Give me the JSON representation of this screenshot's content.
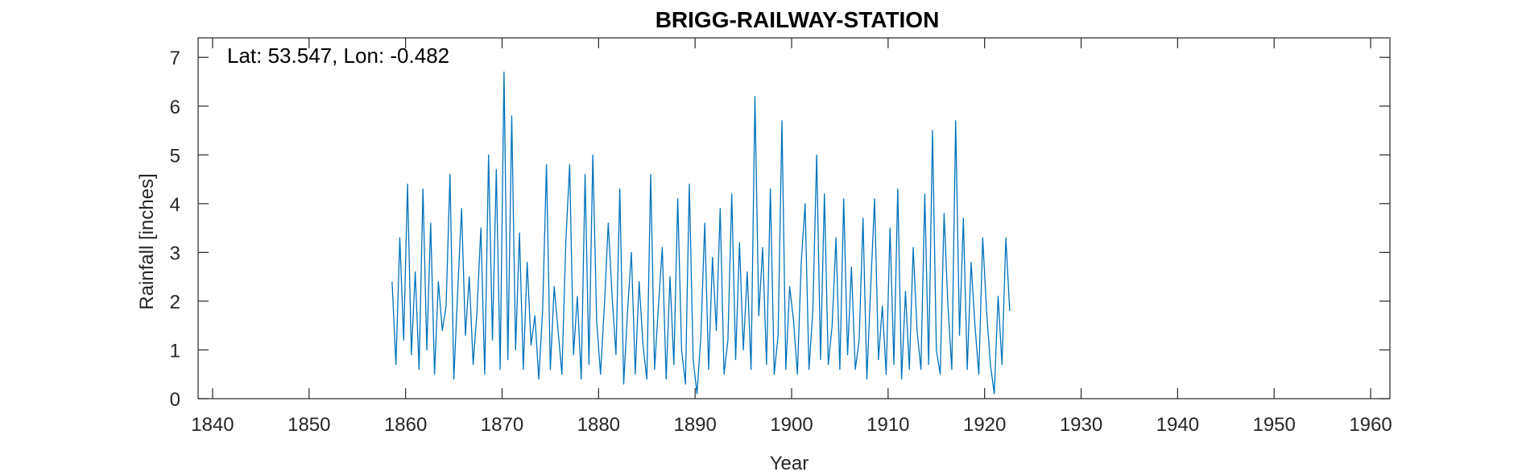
{
  "chart_data": {
    "type": "line",
    "title": "BRIGG-RAILWAY-STATION",
    "xlabel": "Year",
    "ylabel": "Rainfall [inches]",
    "annotation": "Lat: 53.547, Lon: -0.482",
    "xlim": [
      1838.5,
      1962
    ],
    "ylim": [
      0,
      7.4
    ],
    "xticks": [
      1840,
      1850,
      1860,
      1870,
      1880,
      1890,
      1900,
      1910,
      1920,
      1930,
      1940,
      1950,
      1960
    ],
    "yticks": [
      0,
      1,
      2,
      3,
      4,
      5,
      6,
      7
    ],
    "grid": false,
    "line_color": "#0072BD",
    "series": [
      {
        "x": [
          1858.6,
          1859.0,
          1859.4,
          1859.8,
          1860.2,
          1860.6,
          1861.0,
          1861.4,
          1861.8,
          1862.2,
          1862.6,
          1863.0,
          1863.4,
          1863.8,
          1864.2,
          1864.6,
          1865.0,
          1865.4,
          1865.8,
          1866.2,
          1866.6,
          1867.0,
          1867.4,
          1867.8,
          1868.2,
          1868.6,
          1869.0,
          1869.4,
          1869.8,
          1870.2,
          1870.6,
          1871.0,
          1871.4,
          1871.8,
          1872.2,
          1872.6,
          1873.0,
          1873.4,
          1873.8,
          1874.2,
          1874.6,
          1875.0,
          1875.4,
          1875.8,
          1876.2,
          1876.6,
          1877.0,
          1877.4,
          1877.8,
          1878.2,
          1878.6,
          1879.0,
          1879.4,
          1879.8,
          1880.2,
          1880.6,
          1881.0,
          1881.4,
          1881.8,
          1882.2,
          1882.6,
          1883.0,
          1883.4,
          1883.8,
          1884.2,
          1884.6,
          1885.0,
          1885.4,
          1885.8,
          1886.2,
          1886.6,
          1887.0,
          1887.4,
          1887.8,
          1888.2,
          1888.6,
          1889.0,
          1889.4,
          1889.8,
          1890.2,
          1890.6,
          1891.0,
          1891.4,
          1891.8,
          1892.2,
          1892.6,
          1893.0,
          1893.4,
          1893.8,
          1894.2,
          1894.6,
          1895.0,
          1895.4,
          1895.8,
          1896.2,
          1896.6,
          1897.0,
          1897.4,
          1897.8,
          1898.2,
          1898.6,
          1899.0,
          1899.4,
          1899.8,
          1900.2,
          1900.6,
          1901.0,
          1901.4,
          1901.8,
          1902.2,
          1902.6,
          1903.0,
          1903.4,
          1903.8,
          1904.2,
          1904.6,
          1905.0,
          1905.4,
          1905.8,
          1906.2,
          1906.6,
          1907.0,
          1907.4,
          1907.8,
          1908.2,
          1908.6,
          1909.0,
          1909.4,
          1909.8,
          1910.2,
          1910.6,
          1911.0,
          1911.4,
          1911.8,
          1912.2,
          1912.6,
          1913.0,
          1913.4,
          1913.8,
          1914.2,
          1914.6,
          1915.0,
          1915.4,
          1915.8,
          1916.2,
          1916.6,
          1917.0,
          1917.4,
          1917.8,
          1918.2,
          1918.6,
          1919.0,
          1919.4,
          1919.8,
          1920.2,
          1920.6,
          1921.0,
          1921.4,
          1921.8,
          1922.2,
          1922.6
        ],
        "y": [
          2.4,
          0.7,
          3.3,
          1.2,
          4.4,
          0.9,
          2.6,
          0.6,
          4.3,
          1.0,
          3.6,
          0.5,
          2.4,
          1.4,
          1.9,
          4.6,
          0.4,
          2.2,
          3.9,
          1.3,
          2.5,
          0.7,
          1.8,
          3.5,
          0.5,
          5.0,
          1.2,
          4.7,
          0.6,
          6.7,
          0.8,
          5.8,
          1.0,
          3.4,
          0.6,
          2.8,
          1.1,
          1.7,
          0.4,
          1.8,
          4.8,
          0.6,
          2.3,
          1.4,
          0.5,
          3.2,
          4.8,
          0.9,
          2.1,
          0.4,
          4.6,
          0.7,
          5.0,
          1.6,
          0.5,
          1.9,
          3.6,
          2.1,
          0.9,
          4.3,
          0.3,
          1.8,
          3.0,
          0.5,
          2.4,
          1.1,
          0.4,
          4.6,
          0.6,
          1.9,
          3.1,
          0.4,
          2.5,
          0.7,
          4.1,
          1.0,
          0.3,
          4.4,
          0.8,
          0.1,
          1.3,
          3.6,
          0.6,
          2.9,
          1.4,
          3.9,
          0.5,
          1.2,
          4.2,
          0.8,
          3.2,
          1.0,
          2.6,
          0.6,
          6.2,
          1.7,
          3.1,
          0.7,
          4.3,
          0.5,
          1.3,
          5.7,
          0.6,
          2.3,
          1.6,
          0.5,
          2.8,
          4.0,
          0.6,
          1.8,
          5.0,
          0.8,
          4.2,
          0.7,
          1.5,
          3.3,
          0.6,
          4.1,
          0.9,
          2.7,
          0.6,
          1.2,
          3.7,
          0.4,
          2.3,
          4.1,
          0.8,
          1.9,
          0.5,
          3.5,
          0.7,
          4.3,
          0.4,
          2.2,
          0.6,
          3.1,
          1.4,
          0.6,
          4.2,
          0.7,
          5.5,
          1.0,
          0.5,
          3.8,
          1.9,
          0.6,
          5.7,
          1.3,
          3.7,
          0.6,
          2.8,
          1.5,
          0.5,
          3.3,
          1.8,
          0.7,
          0.1,
          2.1,
          0.7,
          3.3,
          1.8
        ]
      }
    ]
  }
}
